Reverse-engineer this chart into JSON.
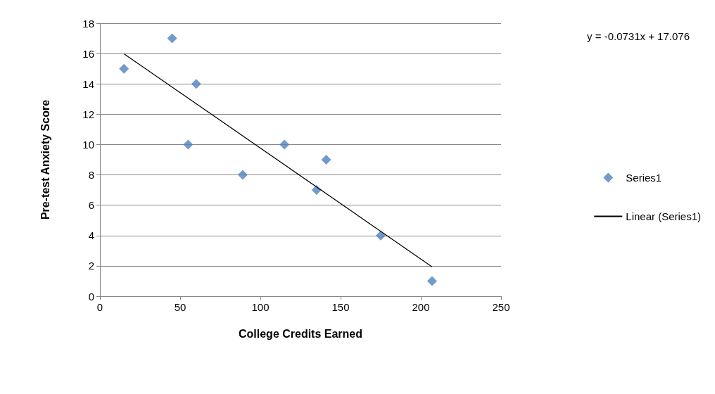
{
  "chart_data": {
    "type": "scatter",
    "xlabel": "College Credits Earned",
    "ylabel": "Pre-test Anxiety Score",
    "annotations": [
      "y = -0.0731x + 17.076"
    ],
    "series": [
      {
        "name": "Series1",
        "type": "scatter",
        "color": "#4f81bd",
        "marker": "diamond",
        "x": [
          15,
          45,
          55,
          60,
          89,
          115,
          135,
          141,
          175,
          207
        ],
        "values": [
          15,
          17,
          10,
          14,
          8,
          10,
          7,
          9,
          4,
          1
        ]
      },
      {
        "name": "Linear (Series1)",
        "type": "line",
        "color": "#000000",
        "marker": "none",
        "line_style": "solid",
        "x": [
          15,
          207
        ],
        "values": [
          15.98,
          1.94
        ]
      }
    ],
    "xlim": [
      0,
      250
    ],
    "xticks": [
      0,
      50,
      100,
      150,
      200,
      250
    ],
    "ylim": [
      0,
      18
    ],
    "yticks": [
      0,
      2,
      4,
      6,
      8,
      10,
      12,
      14,
      16,
      18
    ],
    "grid": "y",
    "legend": "right"
  }
}
